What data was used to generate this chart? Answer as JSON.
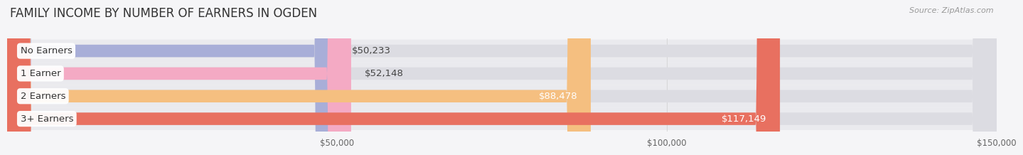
{
  "title": "FAMILY INCOME BY NUMBER OF EARNERS IN OGDEN",
  "source": "Source: ZipAtlas.com",
  "categories": [
    "No Earners",
    "1 Earner",
    "2 Earners",
    "3+ Earners"
  ],
  "values": [
    50233,
    52148,
    88478,
    117149
  ],
  "bar_colors": [
    "#a8aed8",
    "#f4aac4",
    "#f5bf80",
    "#e87060"
  ],
  "bar_bg_color": "#e8e8ec",
  "value_labels": [
    "$50,233",
    "$52,148",
    "$88,478",
    "$117,149"
  ],
  "value_inside": [
    false,
    false,
    true,
    true
  ],
  "xlim": [
    0,
    150000
  ],
  "xticks": [
    50000,
    100000,
    150000
  ],
  "xtick_labels": [
    "$50,000",
    "$100,000",
    "$150,000"
  ],
  "background_color": "#f5f5f7",
  "title_fontsize": 12,
  "label_fontsize": 9.5,
  "value_fontsize": 9.5,
  "bar_height": 0.55,
  "row_bg_colors": [
    "#ececf0",
    "#ececf0",
    "#ececf0",
    "#ececf0"
  ]
}
